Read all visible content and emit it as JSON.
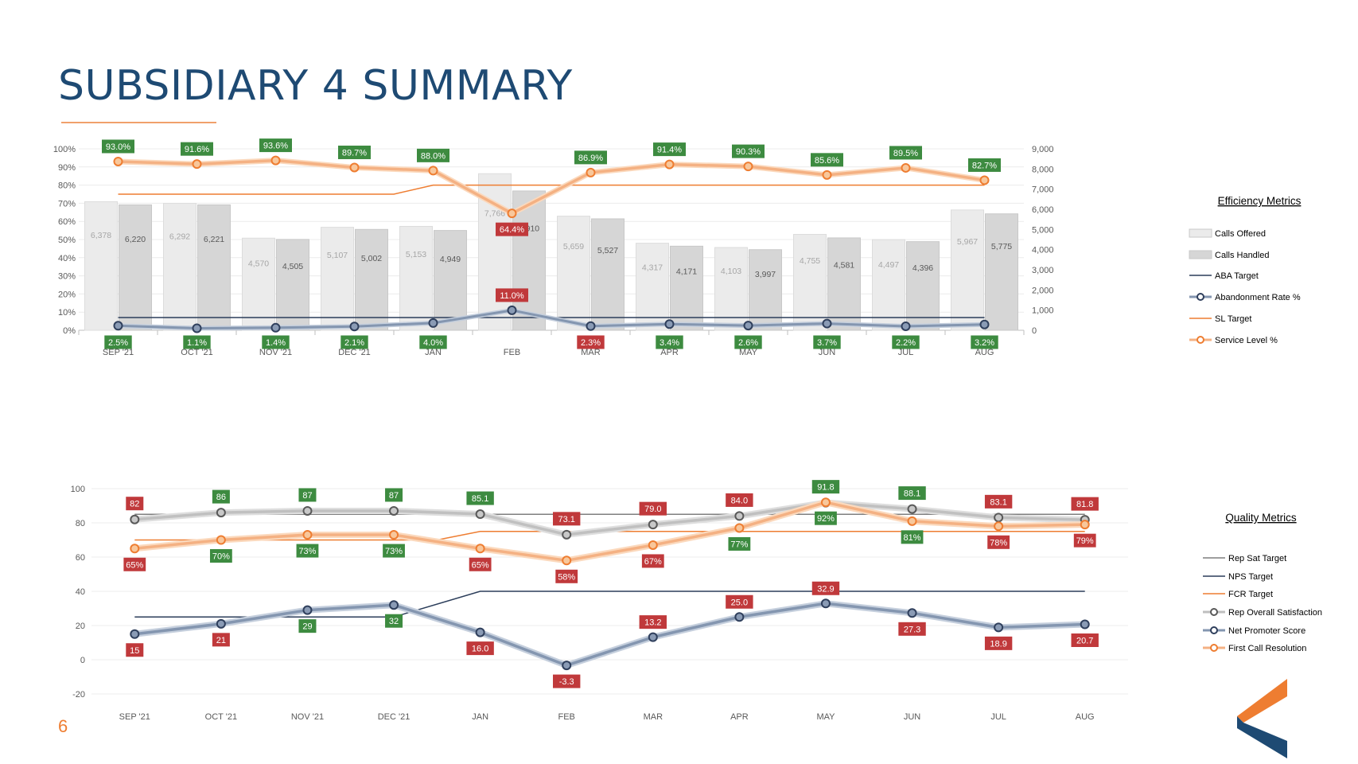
{
  "page": {
    "title": "SUBSIDIARY 4 SUMMARY",
    "page_number": "6"
  },
  "colors": {
    "navy": "#1e4a73",
    "orange": "#ee7d31",
    "green_label": "#3d8b40",
    "red_label": "#c0393b",
    "calls_offered": "#ebebeb",
    "calls_handled": "#d6d6d6",
    "aba_line": "#2b3d5a",
    "abandon_line": "#8496b0",
    "sl_line": "#f4b183",
    "rep_line": "#bfbfbf"
  },
  "chart_data": [
    {
      "type": "bar",
      "name": "Efficiency Metrics",
      "legend_title": "Efficiency Metrics",
      "categories": [
        "SEP '21",
        "OCT '21",
        "NOV '21",
        "DEC '21",
        "JAN",
        "FEB",
        "MAR",
        "APR",
        "MAY",
        "JUN",
        "JUL",
        "AUG"
      ],
      "y_left": {
        "ticks": [
          "100%",
          "90%",
          "80%",
          "70%",
          "60%",
          "50%",
          "40%",
          "30%",
          "20%",
          "10%",
          "0%"
        ],
        "range": [
          0,
          100
        ]
      },
      "y_right": {
        "ticks": [
          "9,000",
          "8,000",
          "7,000",
          "6,000",
          "5,000",
          "4,000",
          "3,000",
          "2,000",
          "1,000",
          "0"
        ],
        "range": [
          0,
          9000
        ]
      },
      "series": [
        {
          "name": "Calls Offered",
          "kind": "bar",
          "axis": "right",
          "values": [
            6378,
            6292,
            4570,
            5107,
            5153,
            7766,
            5659,
            4317,
            4103,
            4755,
            4497,
            5967
          ],
          "labels": [
            "6,378",
            "6,292",
            "4,570",
            "5,107",
            "5,153",
            "7,766",
            "5,659",
            "4,317",
            "4,103",
            "4,755",
            "4,497",
            "5,967"
          ]
        },
        {
          "name": "Calls Handled",
          "kind": "bar",
          "axis": "right",
          "values": [
            6220,
            6221,
            4505,
            5002,
            4949,
            6910,
            5527,
            4171,
            3997,
            4581,
            4396,
            5775
          ],
          "labels": [
            "6,220",
            "6,221",
            "4,505",
            "5,002",
            "4,949",
            "6,910",
            "5,527",
            "4,171",
            "3,997",
            "4,581",
            "4,396",
            "5,775"
          ]
        },
        {
          "name": "ABA Target",
          "kind": "line",
          "axis": "left",
          "values": [
            7,
            7,
            7,
            7,
            7,
            7,
            7,
            7,
            7,
            7,
            7,
            7
          ]
        },
        {
          "name": "Abandonment Rate %",
          "kind": "line",
          "axis": "left",
          "values": [
            2.5,
            1.1,
            1.4,
            2.1,
            4.0,
            11.0,
            2.3,
            3.4,
            2.6,
            3.7,
            2.2,
            3.2
          ],
          "labels": [
            "2.5%",
            "1.1%",
            "1.4%",
            "2.1%",
            "4.0%",
            "11.0%",
            "2.3%",
            "3.4%",
            "2.6%",
            "3.7%",
            "2.2%",
            "3.2%"
          ],
          "label_status": [
            "good",
            "good",
            "good",
            "good",
            "good",
            "bad",
            "bad",
            "good",
            "good",
            "good",
            "good",
            "good"
          ]
        },
        {
          "name": "SL Target",
          "kind": "line",
          "axis": "left",
          "values": [
            75,
            75,
            75,
            75,
            80,
            80,
            80,
            80,
            80,
            80,
            80,
            80
          ]
        },
        {
          "name": "Service Level %",
          "kind": "line",
          "axis": "left",
          "values": [
            93.0,
            91.6,
            93.6,
            89.7,
            88.0,
            64.4,
            86.9,
            91.4,
            90.3,
            85.6,
            89.5,
            82.7
          ],
          "labels": [
            "93.0%",
            "91.6%",
            "93.6%",
            "89.7%",
            "88.0%",
            "64.4%",
            "86.9%",
            "91.4%",
            "90.3%",
            "85.6%",
            "89.5%",
            "82.7%"
          ],
          "label_status": [
            "good",
            "good",
            "good",
            "good",
            "good",
            "bad",
            "good",
            "good",
            "good",
            "good",
            "good",
            "good"
          ]
        }
      ]
    },
    {
      "type": "line",
      "name": "Quality Metrics",
      "legend_title": "Quality Metrics",
      "categories": [
        "SEP '21",
        "OCT '21",
        "NOV '21",
        "DEC '21",
        "JAN",
        "FEB",
        "MAR",
        "APR",
        "MAY",
        "JUN",
        "JUL",
        "AUG"
      ],
      "y": {
        "ticks": [
          "100",
          "80",
          "60",
          "40",
          "20",
          "0",
          "-20"
        ],
        "range": [
          -20,
          100
        ]
      },
      "series": [
        {
          "name": "Rep Sat Target",
          "values": [
            85,
            85,
            85,
            85,
            85,
            85,
            85,
            85,
            85,
            85,
            85,
            85
          ]
        },
        {
          "name": "NPS Target",
          "values": [
            25,
            25,
            25,
            25,
            40,
            40,
            40,
            40,
            40,
            40,
            40,
            40
          ]
        },
        {
          "name": "FCR Target",
          "values": [
            70,
            70,
            70,
            70,
            75,
            75,
            75,
            75,
            75,
            75,
            75,
            75
          ]
        },
        {
          "name": "Rep Overall Satisfaction",
          "values": [
            82,
            86,
            87,
            87,
            85.1,
            73.1,
            79.0,
            84.0,
            91.8,
            88.1,
            83.1,
            81.8
          ],
          "labels": [
            "82",
            "86",
            "87",
            "87",
            "85.1",
            "73.1",
            "79.0",
            "84.0",
            "91.8",
            "88.1",
            "83.1",
            "81.8"
          ],
          "label_status": [
            "bad",
            "good",
            "good",
            "good",
            "good",
            "bad",
            "bad",
            "bad",
            "good",
            "good",
            "bad",
            "bad"
          ]
        },
        {
          "name": "Net Promoter Score",
          "values": [
            15,
            21,
            29,
            32,
            16.0,
            -3.3,
            13.2,
            25.0,
            32.9,
            27.3,
            18.9,
            20.7
          ],
          "labels": [
            "15",
            "21",
            "29",
            "32",
            "16.0",
            "-3.3",
            "13.2",
            "25.0",
            "32.9",
            "27.3",
            "18.9",
            "20.7"
          ],
          "label_status": [
            "bad",
            "bad",
            "good",
            "good",
            "bad",
            "bad",
            "bad",
            "bad",
            "bad",
            "bad",
            "bad",
            "bad"
          ]
        },
        {
          "name": "First Call Resolution",
          "values": [
            65,
            70,
            73,
            73,
            65,
            58,
            67,
            77,
            92,
            81,
            78,
            79
          ],
          "labels": [
            "65%",
            "70%",
            "73%",
            "73%",
            "65%",
            "58%",
            "67%",
            "77%",
            "92%",
            "81%",
            "78%",
            "79%"
          ],
          "label_status": [
            "bad",
            "good",
            "good",
            "good",
            "bad",
            "bad",
            "bad",
            "good",
            "good",
            "good",
            "bad",
            "bad"
          ]
        }
      ]
    }
  ]
}
